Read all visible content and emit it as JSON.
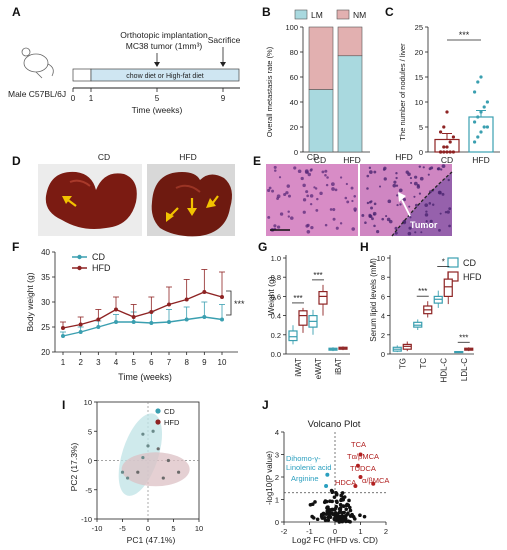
{
  "panels": {
    "A": "A",
    "B": "B",
    "C": "C",
    "D": "D",
    "E": "E",
    "F": "F",
    "G": "G",
    "H": "H",
    "I": "I",
    "J": "J"
  },
  "panel_a": {
    "implant_line1": "Orthotopic implantation",
    "implant_line2": "MC38 tumor (1mm³)",
    "sacrifice": "Sacrifice",
    "diet": "chow diet or High-fat diet",
    "mouse": "Male C57BL/6J",
    "ticks": [
      "0",
      "1",
      "5",
      "9"
    ],
    "time_label": "Time (weeks)"
  },
  "panel_d": {
    "cd": "CD",
    "hfd": "HFD"
  },
  "panel_e": {
    "cd": "CD",
    "hfd": "HFD",
    "tumor": "Tumor"
  },
  "colors": {
    "cd": "#3a9fb0",
    "hfd": "#8e2323",
    "lm": "#a9d9df",
    "nm": "#e2b0b0"
  },
  "chart_data": [
    {
      "panel": "B",
      "type": "bar",
      "categories": [
        "CD",
        "HFD"
      ],
      "series": [
        {
          "name": "LM",
          "values": [
            50,
            77
          ]
        },
        {
          "name": "NM",
          "values": [
            50,
            23
          ]
        }
      ],
      "ylabel": "Overall metastasis rate (%)",
      "ylim": [
        0,
        100
      ],
      "yticks": [
        "0",
        "20",
        "40",
        "60",
        "80",
        "100"
      ],
      "legend": "top"
    },
    {
      "panel": "C",
      "type": "bar",
      "categories": [
        "CD",
        "HFD"
      ],
      "values": [
        2.5,
        7
      ],
      "errors": [
        1.2,
        1.3
      ],
      "points": [
        [
          0,
          0,
          0,
          0,
          0,
          0,
          1,
          1,
          2,
          3,
          4,
          5,
          8
        ],
        [
          2,
          3,
          4,
          5,
          5,
          6,
          7,
          8,
          9,
          10,
          12,
          14,
          15
        ]
      ],
      "ylabel": "The number of nodules / liver",
      "ylim": [
        0,
        25
      ],
      "yticks": [
        "0",
        "5",
        "10",
        "15",
        "20",
        "25"
      ],
      "significance": "***"
    },
    {
      "panel": "F",
      "type": "line",
      "x": [
        1,
        2,
        3,
        4,
        5,
        6,
        7,
        8,
        9,
        10
      ],
      "series": [
        {
          "name": "CD",
          "values": [
            23.2,
            24.0,
            25.0,
            26.0,
            26.0,
            25.8,
            26.0,
            26.5,
            27.0,
            26.5
          ],
          "errors": [
            0.8,
            1.0,
            1.2,
            1.5,
            2.0,
            2.2,
            2.5,
            2.5,
            3.0,
            3.0
          ]
        },
        {
          "name": "HFD",
          "values": [
            24.8,
            25.5,
            26.5,
            28.5,
            27.0,
            28.0,
            29.5,
            30.5,
            32.0,
            31.0
          ],
          "errors": [
            1.2,
            1.5,
            2.0,
            2.5,
            2.5,
            3.0,
            3.5,
            4.0,
            4.5,
            5.0
          ]
        }
      ],
      "xlabel": "Time  (weeks)",
      "ylabel": "Body weight (g)",
      "ylim": [
        20,
        40
      ],
      "yticks": [
        "20",
        "25",
        "30",
        "35",
        "40"
      ],
      "xticks": [
        "1",
        "2",
        "3",
        "4",
        "5",
        "6",
        "7",
        "8",
        "9",
        "10"
      ],
      "significance": "***",
      "legend": "top-left"
    },
    {
      "panel": "G",
      "type": "box",
      "categories": [
        "iWAT",
        "eWAT",
        "iBAT"
      ],
      "boxes": {
        "CD": [
          [
            0.1,
            0.14,
            0.18,
            0.24,
            0.3
          ],
          [
            0.2,
            0.28,
            0.34,
            0.4,
            0.46
          ],
          [
            0.03,
            0.04,
            0.05,
            0.06,
            0.07
          ]
        ],
        "HFD": [
          [
            0.22,
            0.3,
            0.4,
            0.45,
            0.48
          ],
          [
            0.4,
            0.52,
            0.6,
            0.65,
            0.72
          ],
          [
            0.04,
            0.05,
            0.06,
            0.07,
            0.08
          ]
        ]
      },
      "ylabel": "Weight (g)",
      "ylim": [
        0,
        1.0
      ],
      "yticks": [
        "0.0",
        "0.2",
        "0.4",
        "0.6",
        "0.8",
        "1.0"
      ],
      "significance": [
        "***",
        "***",
        ""
      ]
    },
    {
      "panel": "H",
      "type": "box",
      "categories": [
        "TG",
        "TC",
        "HDL-C",
        "LDL-C"
      ],
      "boxes": {
        "CD": [
          [
            0.2,
            0.3,
            0.5,
            0.7,
            0.9
          ],
          [
            2.5,
            2.8,
            3.0,
            3.3,
            3.6
          ],
          [
            4.8,
            5.3,
            5.7,
            6.0,
            6.6
          ],
          [
            0.1,
            0.15,
            0.2,
            0.25,
            0.3
          ]
        ],
        "HFD": [
          [
            0.3,
            0.5,
            0.8,
            1.0,
            1.3
          ],
          [
            3.8,
            4.2,
            4.6,
            5.0,
            5.5
          ],
          [
            5.2,
            6.0,
            7.0,
            7.8,
            8.6
          ],
          [
            0.3,
            0.4,
            0.5,
            0.6,
            0.7
          ]
        ]
      },
      "ylabel": "Serum lipid levels (mM)",
      "ylim": [
        0,
        10
      ],
      "yticks": [
        "0",
        "2",
        "4",
        "6",
        "8",
        "10"
      ],
      "significance": [
        "",
        "***",
        "*",
        "***"
      ],
      "legend": "top-right"
    },
    {
      "panel": "I",
      "type": "scatter",
      "series": [
        {
          "name": "CD",
          "points": [
            [
              -1,
              4.5
            ],
            [
              1,
              5
            ],
            [
              0,
              2.5
            ],
            [
              -1,
              0.5
            ],
            [
              -5,
              -2
            ],
            [
              -4,
              -3
            ]
          ]
        },
        {
          "name": "HFD",
          "points": [
            [
              2,
              2
            ],
            [
              4,
              0
            ],
            [
              -2,
              -2
            ],
            [
              3,
              -3
            ],
            [
              6,
              -2
            ]
          ]
        }
      ],
      "xlabel": "PC1 (47.1%)",
      "ylabel": "PC2 (17.3%)",
      "xlim": [
        -10,
        10
      ],
      "ylim": [
        -10,
        10
      ],
      "xticks": [
        "-10",
        "-5",
        "0",
        "5",
        "10"
      ],
      "yticks": [
        "-10",
        "-5",
        "0",
        "5",
        "10"
      ],
      "legend": "top-right"
    },
    {
      "panel": "J",
      "type": "scatter",
      "title": "Volcano Plot",
      "xlabel": "Log2 FC (HFD vs. CD)",
      "ylabel": "-log10(P value)",
      "xlim": [
        -2,
        2
      ],
      "ylim": [
        0,
        4
      ],
      "xticks": [
        "-2",
        "-1",
        "0",
        "1",
        "2"
      ],
      "yticks": [
        "0",
        "1",
        "2",
        "3",
        "4"
      ],
      "up_labels": [
        "TCA",
        "Tα/βMCA",
        "TUDCA",
        "α/βMCA",
        "HDCA"
      ],
      "down_labels": [
        "Dihomo-γ-",
        "Linolenic acid",
        "Arginine"
      ],
      "up_points": [
        [
          1.0,
          3.0
        ],
        [
          0.9,
          2.5
        ],
        [
          1.0,
          2.0
        ],
        [
          1.5,
          1.7
        ],
        [
          0.8,
          1.6
        ]
      ],
      "down_points": [
        [
          -0.3,
          2.1
        ],
        [
          -0.35,
          1.6
        ]
      ]
    }
  ]
}
